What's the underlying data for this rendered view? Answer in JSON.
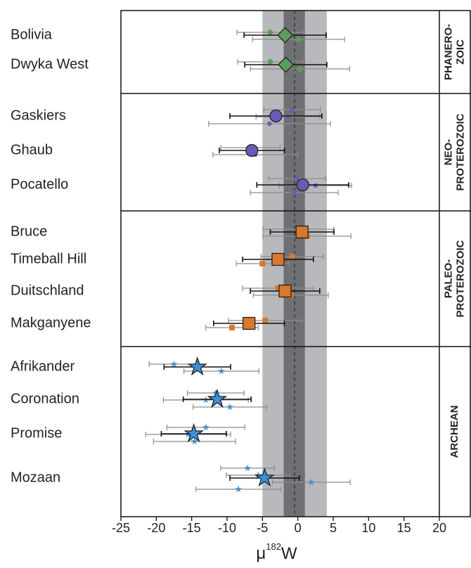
{
  "chart_data": {
    "type": "dot-plot",
    "x_label": {
      "prefix": "μ",
      "sup": "182",
      "suffix": "W"
    },
    "xlim": [
      -25,
      20
    ],
    "xticks": [
      -25,
      -20,
      -15,
      -10,
      -5,
      0,
      5,
      10,
      15,
      20
    ],
    "uncertainty_band": [
      -5,
      4.1
    ],
    "inner_band": [
      -2,
      1
    ],
    "reference": -0.45,
    "groups": [
      {
        "label_lines": [
          "PHANERO-",
          "ZOIC"
        ],
        "marker": "diamond",
        "color": "#5b9e5b",
        "samples": [
          {
            "name": "Bolivia",
            "mean": -1.8,
            "error": 5.8,
            "points": [
              {
                "value": -3.9,
                "error": 4.7
              },
              {
                "value": 0.1,
                "error": 6.5
              }
            ]
          },
          {
            "name": "Dwyka West",
            "mean": -1.7,
            "error": 5.8,
            "points": [
              {
                "value": -3.9,
                "error": 4.6
              },
              {
                "value": 0.3,
                "error": 7.0
              }
            ]
          }
        ]
      },
      {
        "label_lines": [
          "NEO-",
          "PROTEROZOIC"
        ],
        "marker": "circle",
        "color": "#6a5ab8",
        "samples": [
          {
            "name": "Gaskiers",
            "mean": -3.1,
            "error": 6.5,
            "points": [
              {
                "value": -0.8,
                "error": 4.0
              },
              {
                "value": -1.4,
                "error": 4.5
              },
              {
                "value": -4.0,
                "error": 8.6
              }
            ]
          },
          {
            "name": "Ghaub",
            "mean": -6.5,
            "error": 4.6,
            "points": [
              {
                "value": -6.7,
                "error": 4.2
              },
              {
                "value": -6.0,
                "error": 6.0
              }
            ]
          },
          {
            "name": "Pocatello",
            "mean": 0.7,
            "error": 6.5,
            "points": [
              {
                "value": -0.1,
                "error": 4.0
              },
              {
                "value": 2.5,
                "error": 5.1
              },
              {
                "value": -0.5,
                "error": 6.2
              }
            ]
          }
        ]
      },
      {
        "label_lines": [
          "PALEO-",
          "PROTEROZOIC"
        ],
        "marker": "square",
        "color": "#d9782a",
        "samples": [
          {
            "name": "Bruce",
            "mean": 0.6,
            "error": 4.5,
            "points": [
              {
                "value": 0.1,
                "error": 5.0
              },
              {
                "value": 1.3,
                "error": 6.2
              }
            ]
          },
          {
            "name": "Timeball Hill",
            "mean": -2.8,
            "error": 5.0,
            "points": [
              {
                "value": -0.8,
                "error": 4.4
              },
              {
                "value": -5.0,
                "error": 3.7
              }
            ]
          },
          {
            "name": "Duitschland",
            "mean": -1.8,
            "error": 4.9,
            "points": [
              {
                "value": -2.8,
                "error": 5.0
              },
              {
                "value": -1.0,
                "error": 5.3
              }
            ]
          },
          {
            "name": "Makganyene",
            "mean": -6.9,
            "error": 5.0,
            "points": [
              {
                "value": -4.6,
                "error": 5.2
              },
              {
                "value": -9.3,
                "error": 3.7
              }
            ]
          }
        ]
      },
      {
        "label_lines": [
          "ARCHEAN"
        ],
        "marker": "star",
        "color": "#3a8fd8",
        "samples": [
          {
            "name": "Afrikander",
            "mean": -14.2,
            "error": 4.7,
            "points": [
              {
                "value": -17.5,
                "error": 3.5
              },
              {
                "value": -10.8,
                "error": 5.3
              }
            ]
          },
          {
            "name": "Coronation",
            "mean": -11.4,
            "error": 4.8,
            "points": [
              {
                "value": -11.6,
                "error": 4.0
              },
              {
                "value": -13.0,
                "error": 6.0
              },
              {
                "value": -9.6,
                "error": 5.2
              }
            ]
          },
          {
            "name": "Promise",
            "mean": -14.7,
            "error": 4.6,
            "points": [
              {
                "value": -13.0,
                "error": 5.5
              },
              {
                "value": -15.5,
                "error": 6.0
              },
              {
                "value": -14.6,
                "error": 5.8
              }
            ]
          },
          {
            "name": "Mozaan",
            "mean": -4.7,
            "error": 4.9,
            "points": [
              {
                "value": -7.1,
                "error": 3.8
              },
              {
                "value": -5.6,
                "error": 4.5
              },
              {
                "value": 1.9,
                "error": 5.5
              },
              {
                "value": -8.4,
                "error": 6.0
              }
            ]
          }
        ]
      }
    ]
  }
}
